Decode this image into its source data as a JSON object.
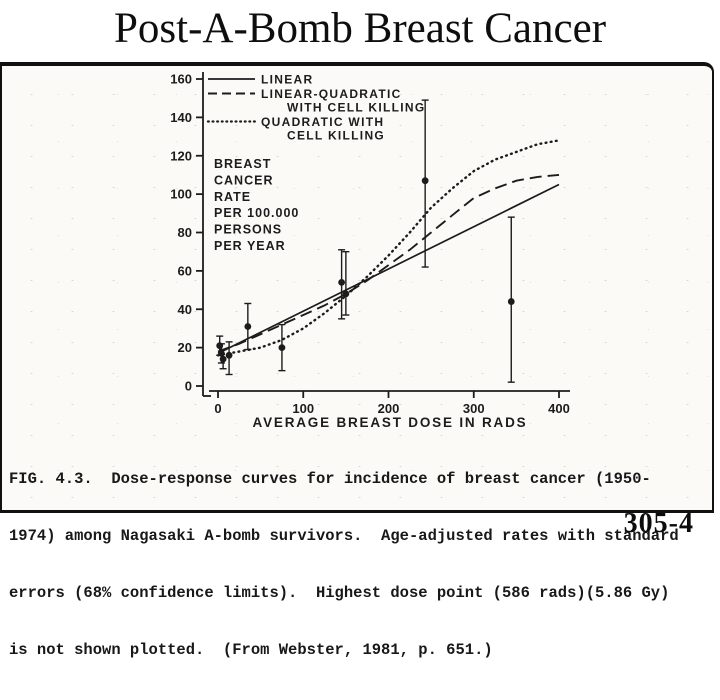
{
  "slide": {
    "title": "Post-A-Bomb Breast Cancer",
    "page_number": "305-4"
  },
  "figure": {
    "caption_lines": [
      "FIG. 4.3.  Dose-response curves for incidence of breast cancer (1950-",
      "1974) among Nagasaki A-bomb survivors.  Age-adjusted rates with standard",
      "errors (68% confidence limits).  Highest dose point (586 rads)(5.86 Gy)",
      "is not shown plotted.  (From Webster, 1981, p. 651.)"
    ]
  },
  "chart_data": {
    "type": "line",
    "title": "",
    "xlabel": "AVERAGE BREAST DOSE IN RADS",
    "ylabel_lines": [
      "BREAST",
      "CANCER",
      "RATE",
      "PER 100.000",
      "PERSONS",
      "PER YEAR"
    ],
    "xlim": [
      0,
      400
    ],
    "ylim": [
      0,
      160
    ],
    "xticks": [
      0,
      100,
      200,
      300,
      400
    ],
    "yticks": [
      0,
      20,
      40,
      60,
      80,
      100,
      120,
      140,
      160
    ],
    "grid": false,
    "legend_position": "top-left",
    "ink": "#1c1c1c",
    "series": [
      {
        "name": "LINEAR",
        "style": "solid",
        "legend_lines": [
          "LINEAR"
        ],
        "x": [
          0,
          400
        ],
        "y": [
          17,
          105
        ]
      },
      {
        "name": "LINEAR-QUADRATIC WITH CELL KILLING",
        "style": "dashed",
        "legend_lines": [
          "LINEAR-QUADRATIC",
          "WITH CELL KILLING"
        ],
        "x": [
          0,
          25,
          50,
          75,
          100,
          125,
          150,
          175,
          200,
          225,
          250,
          275,
          300,
          325,
          350,
          375,
          400
        ],
        "y": [
          18,
          22,
          27,
          32,
          37,
          42,
          48,
          55,
          63,
          71,
          80,
          89,
          98,
          103,
          107,
          109,
          110
        ]
      },
      {
        "name": "QUADRATIC WITH CELL KILLING",
        "style": "dotted",
        "legend_lines": [
          "QUADRATIC WITH",
          "CELL KILLING"
        ],
        "x": [
          0,
          25,
          50,
          75,
          100,
          125,
          150,
          175,
          200,
          225,
          250,
          275,
          300,
          325,
          350,
          375,
          400
        ],
        "y": [
          16,
          18,
          20,
          24,
          30,
          38,
          47,
          57,
          68,
          80,
          93,
          103,
          112,
          118,
          122,
          126,
          128
        ]
      }
    ],
    "points": [
      {
        "x": 2,
        "y": 21,
        "lo": 16,
        "hi": 26
      },
      {
        "x": 4,
        "y": 17,
        "lo": 12,
        "hi": 22
      },
      {
        "x": 6,
        "y": 14,
        "lo": 9,
        "hi": 19
      },
      {
        "x": 13,
        "y": 16,
        "lo": 6,
        "hi": 23
      },
      {
        "x": 35,
        "y": 31,
        "lo": 19,
        "hi": 43
      },
      {
        "x": 75,
        "y": 20,
        "lo": 8,
        "hi": 32
      },
      {
        "x": 145,
        "y": 54,
        "lo": 35,
        "hi": 71
      },
      {
        "x": 150,
        "y": 48,
        "lo": 37,
        "hi": 70
      },
      {
        "x": 243,
        "y": 107,
        "lo": 62,
        "hi": 149
      },
      {
        "x": 344,
        "y": 44,
        "lo": 2,
        "hi": 88
      }
    ]
  }
}
